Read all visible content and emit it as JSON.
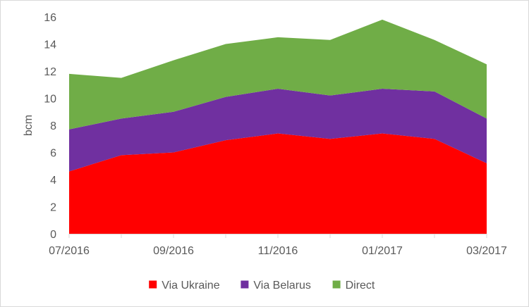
{
  "chart_data": {
    "type": "area",
    "stacked": true,
    "title": "",
    "xlabel": "",
    "ylabel": "bcm",
    "ylim": [
      0,
      16
    ],
    "yticks": [
      0,
      2,
      4,
      6,
      8,
      10,
      12,
      14,
      16
    ],
    "grid": false,
    "legend_position": "bottom",
    "x": [
      "07/2016",
      "08/2016",
      "09/2016",
      "10/2016",
      "11/2016",
      "12/2016",
      "01/2017",
      "02/2017",
      "03/2017"
    ],
    "x_tick_labels": [
      "07/2016",
      "09/2016",
      "11/2016",
      "01/2017",
      "03/2017"
    ],
    "series": [
      {
        "name": "Via Ukraine",
        "color": "#ff0000",
        "values": [
          4.6,
          5.8,
          6.0,
          6.9,
          7.4,
          7.0,
          7.4,
          7.0,
          5.2
        ]
      },
      {
        "name": "Via Belarus",
        "color": "#7030a0",
        "values": [
          3.1,
          2.7,
          3.0,
          3.2,
          3.3,
          3.2,
          3.3,
          3.5,
          3.3
        ]
      },
      {
        "name": "Direct",
        "color": "#70ad47",
        "values": [
          4.1,
          3.0,
          3.8,
          3.9,
          3.8,
          4.1,
          5.1,
          3.8,
          4.0
        ]
      }
    ]
  }
}
